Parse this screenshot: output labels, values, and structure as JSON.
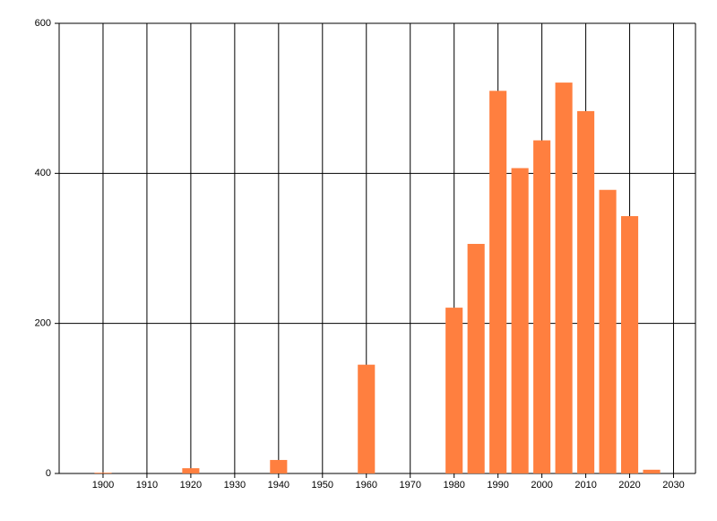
{
  "chart_data": {
    "type": "bar",
    "x": [
      1900,
      1920,
      1940,
      1960,
      1980,
      1985,
      1990,
      1995,
      2000,
      2005,
      2010,
      2015,
      2020,
      2025
    ],
    "values": [
      1,
      7,
      18,
      145,
      221,
      306,
      510,
      407,
      444,
      521,
      483,
      378,
      343,
      5
    ],
    "color": "#ff7f3f",
    "xlim": [
      1890,
      2035
    ],
    "xticks": [
      1900,
      1910,
      1920,
      1930,
      1940,
      1950,
      1960,
      1970,
      1980,
      1990,
      2000,
      2010,
      2020,
      2030
    ],
    "ylim": [
      0,
      600
    ],
    "yticks": [
      0,
      200,
      400,
      600
    ],
    "grid": true
  }
}
